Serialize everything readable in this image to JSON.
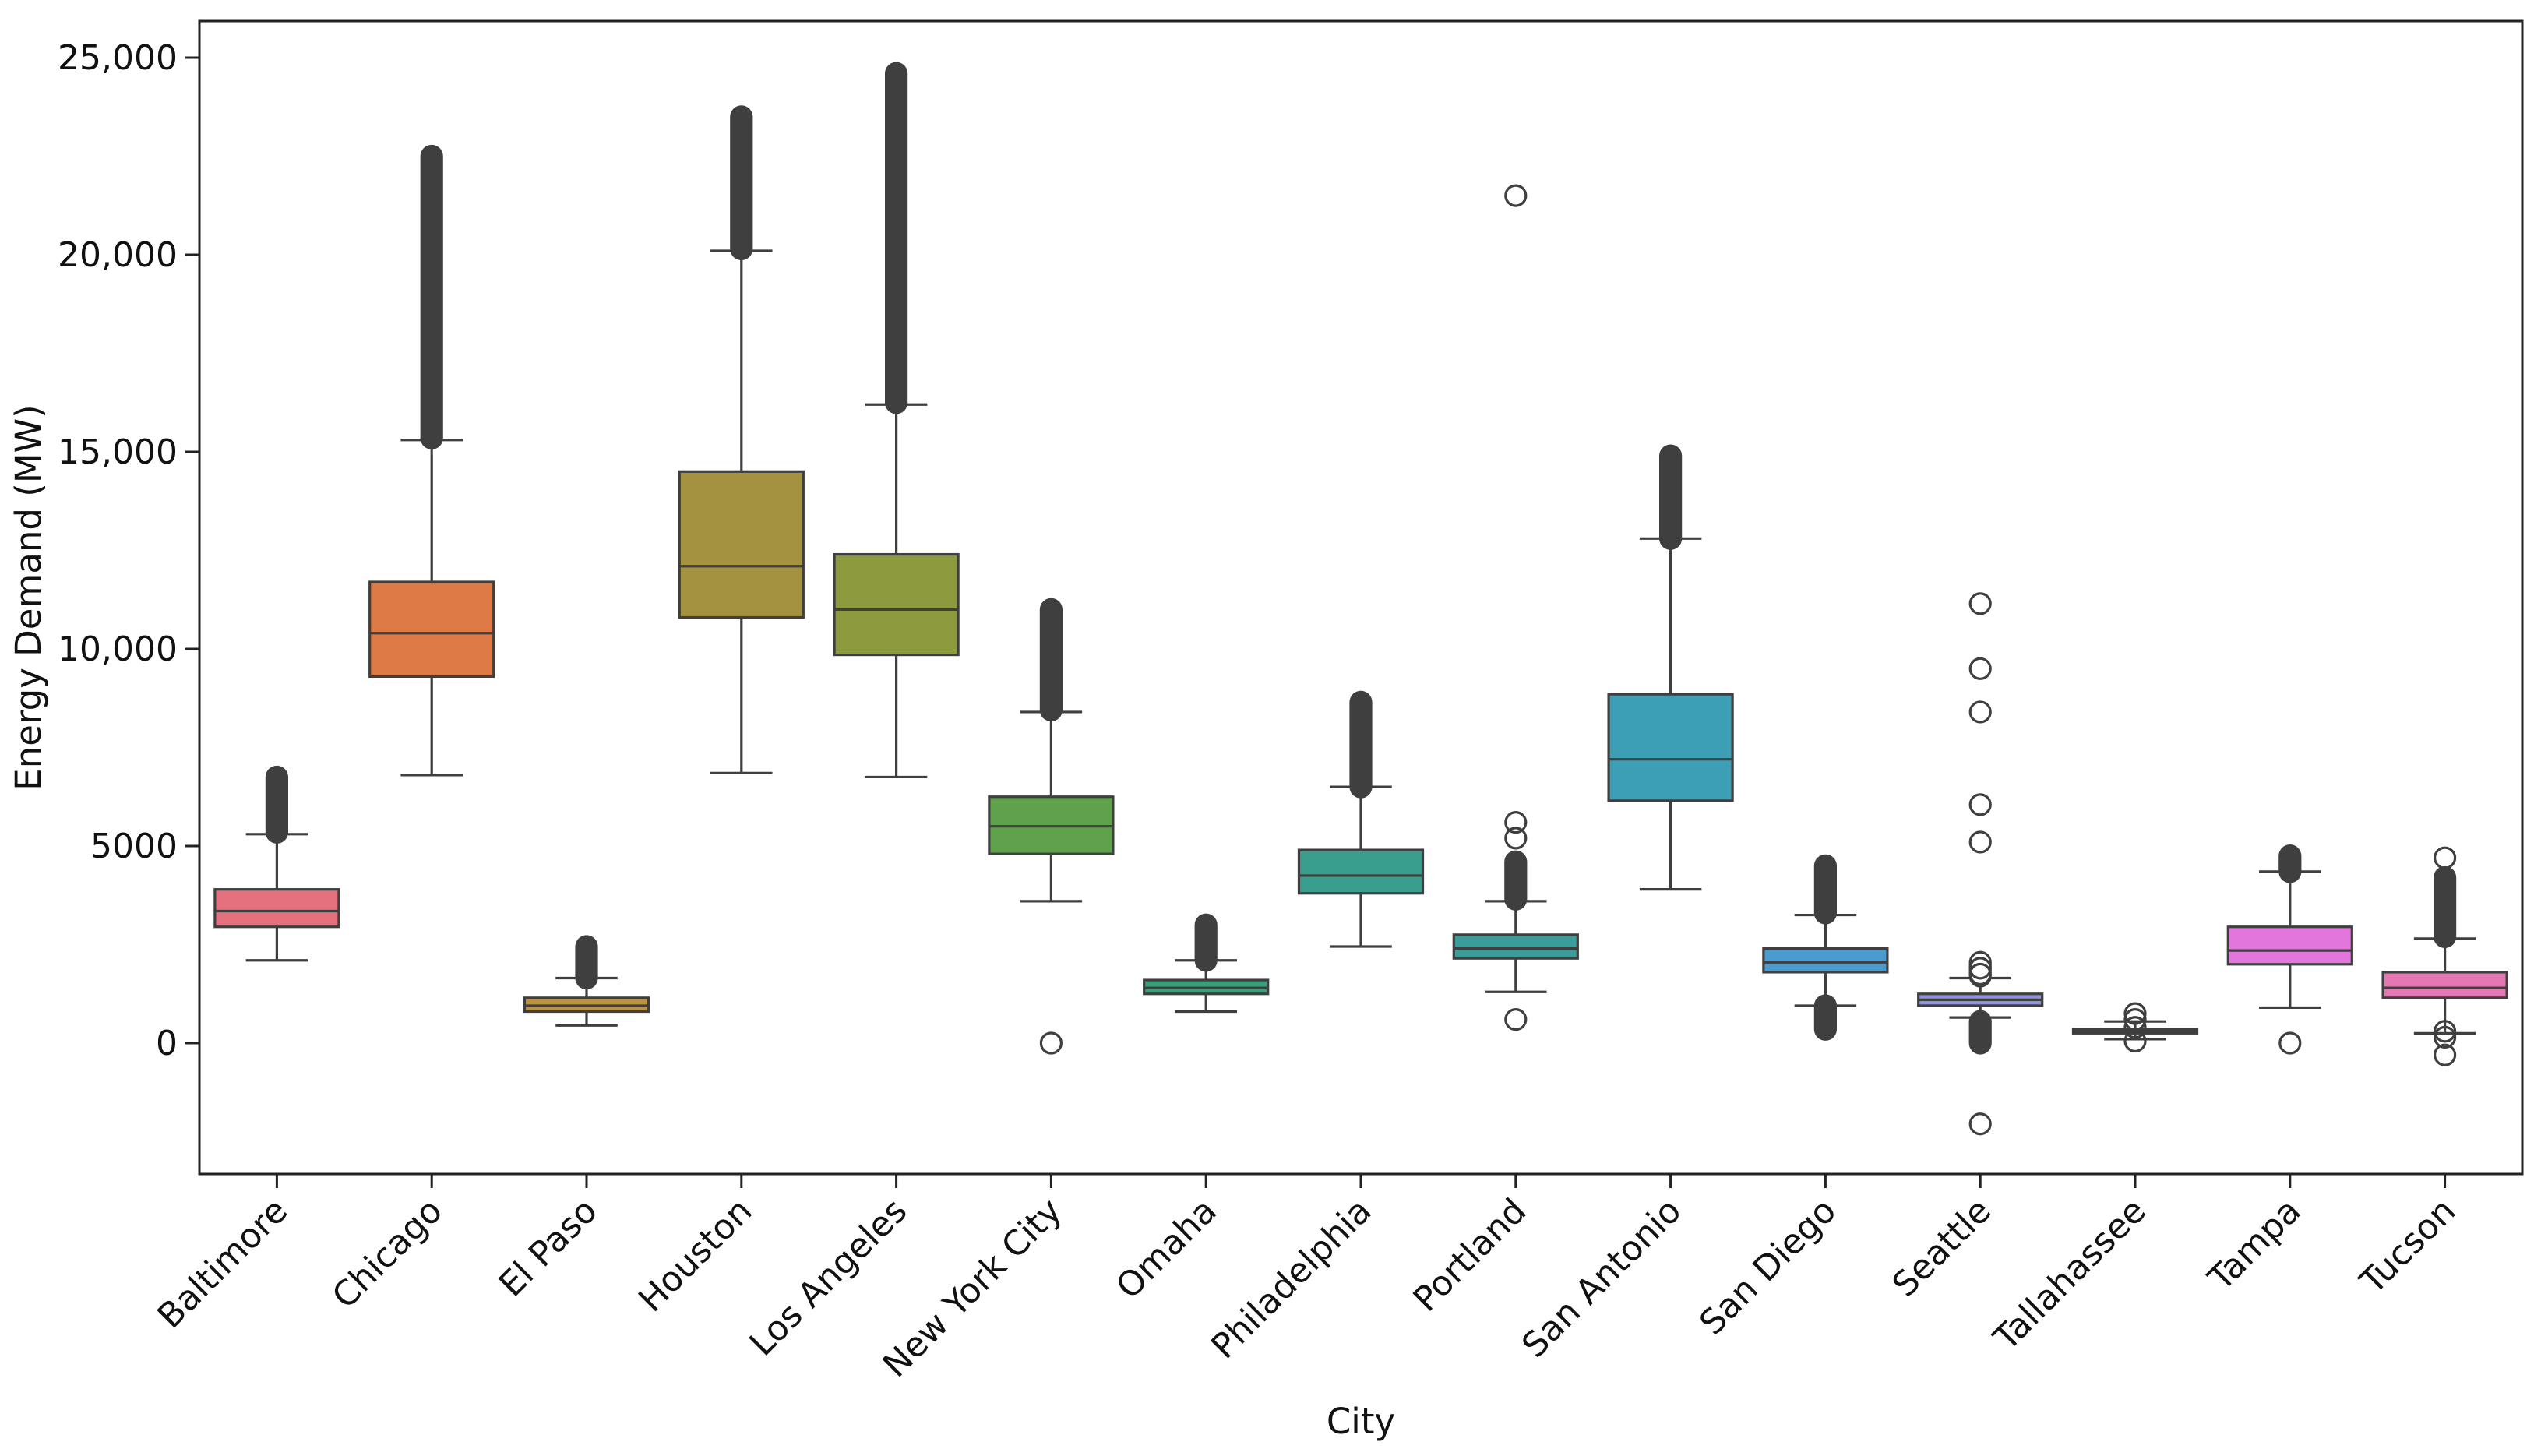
{
  "chart_data": {
    "type": "box",
    "title": "",
    "xlabel": "City",
    "ylabel": "Energy Demand (MW)",
    "ylim": [
      -3300,
      25900
    ],
    "yticks": [
      0,
      5000,
      10000,
      15000,
      20000,
      25000
    ],
    "ytick_labels": [
      "0",
      "5000",
      "10,000",
      "15,000",
      "20,000",
      "25,000"
    ],
    "categories": [
      "Baltimore",
      "Chicago",
      "El Paso",
      "Houston",
      "Los Angeles",
      "New York City",
      "Omaha",
      "Philadelphia",
      "Portland",
      "San Antonio",
      "San Diego",
      "Seattle",
      "Tallahassee",
      "Tampa",
      "Tucson"
    ],
    "series": [
      {
        "name": "Baltimore",
        "color": "#E5707E",
        "whisker_low": 2100,
        "q1": 2950,
        "median": 3350,
        "q3": 3900,
        "whisker_high": 5300,
        "outliers": [],
        "outlier_bands": [
          [
            5350,
            6750
          ]
        ]
      },
      {
        "name": "Chicago",
        "color": "#DD7A45",
        "whisker_low": 6800,
        "q1": 9300,
        "median": 10400,
        "q3": 11700,
        "whisker_high": 15300,
        "outliers": [],
        "outlier_bands": [
          [
            15350,
            22500
          ]
        ]
      },
      {
        "name": "El Paso",
        "color": "#BC9243",
        "whisker_low": 450,
        "q1": 800,
        "median": 950,
        "q3": 1150,
        "whisker_high": 1650,
        "outliers": [],
        "outlier_bands": [
          [
            1650,
            2450
          ]
        ]
      },
      {
        "name": "Houston",
        "color": "#A49240",
        "whisker_low": 6850,
        "q1": 10800,
        "median": 12100,
        "q3": 14500,
        "whisker_high": 20100,
        "outliers": [],
        "outlier_bands": [
          [
            20150,
            23500
          ]
        ]
      },
      {
        "name": "Los Angeles",
        "color": "#8D9A3E",
        "whisker_low": 6750,
        "q1": 9850,
        "median": 11000,
        "q3": 12400,
        "whisker_high": 16200,
        "outliers": [],
        "outlier_bands": [
          [
            16250,
            24600
          ]
        ]
      },
      {
        "name": "New York City",
        "color": "#5FA24B",
        "whisker_low": 3600,
        "q1": 4800,
        "median": 5500,
        "q3": 6250,
        "whisker_high": 8400,
        "outliers": [
          0
        ],
        "outlier_bands": [
          [
            8450,
            11000
          ]
        ]
      },
      {
        "name": "Omaha",
        "color": "#3AA07A",
        "whisker_low": 800,
        "q1": 1250,
        "median": 1400,
        "q3": 1600,
        "whisker_high": 2100,
        "outliers": [],
        "outlier_bands": [
          [
            2100,
            3000
          ]
        ]
      },
      {
        "name": "Philadelphia",
        "color": "#3A9E8F",
        "whisker_low": 2450,
        "q1": 3800,
        "median": 4250,
        "q3": 4900,
        "whisker_high": 6500,
        "outliers": [],
        "outlier_bands": [
          [
            6500,
            8650
          ]
        ]
      },
      {
        "name": "Portland",
        "color": "#3A9C9B",
        "whisker_low": 1300,
        "q1": 2150,
        "median": 2400,
        "q3": 2750,
        "whisker_high": 3600,
        "outliers": [
          21500,
          5600,
          5200,
          600
        ],
        "outlier_bands": [
          [
            3650,
            4600
          ]
        ]
      },
      {
        "name": "San Antonio",
        "color": "#3D9FB5",
        "whisker_low": 3900,
        "q1": 6150,
        "median": 7200,
        "q3": 8850,
        "whisker_high": 12800,
        "outliers": [],
        "outlier_bands": [
          [
            12800,
            14900
          ]
        ]
      },
      {
        "name": "San Diego",
        "color": "#4A9BD0",
        "whisker_low": 950,
        "q1": 1800,
        "median": 2050,
        "q3": 2400,
        "whisker_high": 3250,
        "outliers": [],
        "outlier_bands": [
          [
            3300,
            4500
          ],
          [
            350,
            950
          ]
        ]
      },
      {
        "name": "Seattle",
        "color": "#8F93D9",
        "whisker_low": 650,
        "q1": 950,
        "median": 1100,
        "q3": 1250,
        "whisker_high": 1650,
        "outliers": [
          11150,
          9500,
          8400,
          6050,
          5100,
          1900,
          1750,
          -2050
        ],
        "outlier_bands": [
          [
            1700,
            2050
          ],
          [
            0,
            550
          ]
        ]
      },
      {
        "name": "Tallahassee",
        "color": "#B88EE0",
        "whisker_low": 100,
        "q1": 250,
        "median": 300,
        "q3": 350,
        "whisker_high": 550,
        "outliers": [
          750,
          600,
          400,
          50
        ],
        "outlier_bands": []
      },
      {
        "name": "Tampa",
        "color": "#E276DD",
        "whisker_low": 900,
        "q1": 2000,
        "median": 2350,
        "q3": 2950,
        "whisker_high": 4350,
        "outliers": [
          0
        ],
        "outlier_bands": [
          [
            4350,
            4750
          ]
        ]
      },
      {
        "name": "Tucson",
        "color": "#E578B2",
        "whisker_low": 250,
        "q1": 1150,
        "median": 1400,
        "q3": 1800,
        "whisker_high": 2650,
        "outliers": [
          4700,
          300,
          150,
          -300
        ],
        "outlier_bands": [
          [
            2700,
            4200
          ]
        ]
      }
    ]
  }
}
